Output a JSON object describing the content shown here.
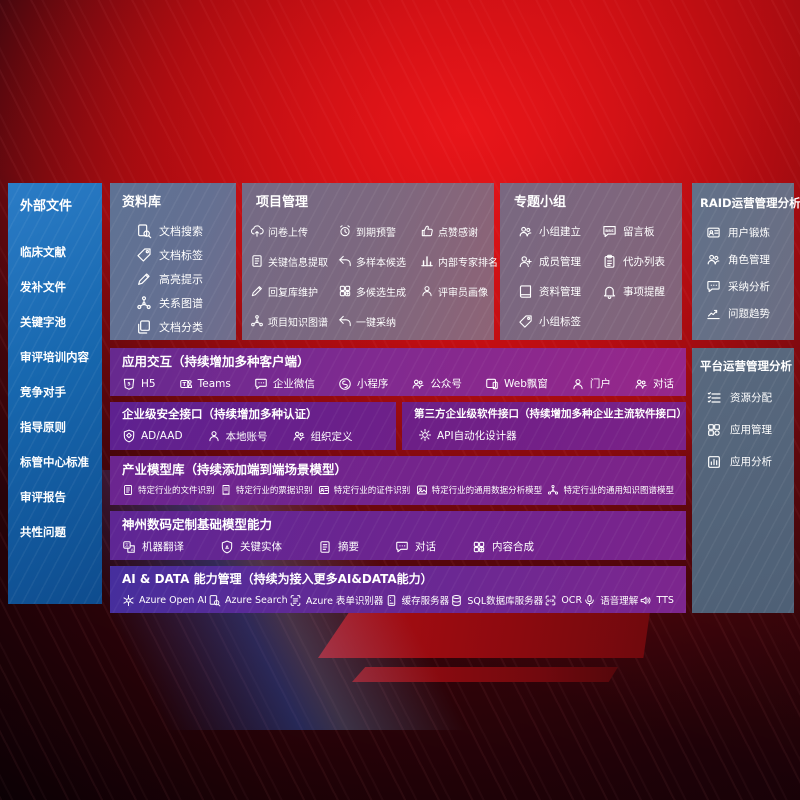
{
  "colors": {
    "background_red": "#bb0e13",
    "panel_blue": "#1767ae",
    "panel_slate": "#617189",
    "panel_mauve": "#7d687f",
    "band_purple": "#752a8f",
    "text": "#ffffff"
  },
  "left": {
    "title": "外部文件",
    "items": [
      "临床文献",
      "发补文件",
      "关键字池",
      "审评培训内容",
      "竞争对手",
      "指导原则",
      "标管中心标准",
      "审评报告",
      "共性问题"
    ]
  },
  "repo": {
    "title": "资料库",
    "items": [
      {
        "label": "文档搜索",
        "icon": "doc-search-icon"
      },
      {
        "label": "文档标签",
        "icon": "tag-icon"
      },
      {
        "label": "高亮提示",
        "icon": "highlight-pen-icon"
      },
      {
        "label": "关系图谱",
        "icon": "knowledge-graph-icon"
      },
      {
        "label": "文档分类",
        "icon": "doc-copy-icon"
      }
    ]
  },
  "project": {
    "title": "项目管理",
    "items": [
      {
        "label": "问卷上传",
        "icon": "cloud-upload-icon"
      },
      {
        "label": "到期预警",
        "icon": "alarm-icon"
      },
      {
        "label": "点赞感谢",
        "icon": "thumbs-up-icon"
      },
      {
        "label": "关键信息提取",
        "icon": "doc-extract-icon"
      },
      {
        "label": "多样本候选",
        "icon": "reply-arrow-icon"
      },
      {
        "label": "内部专家排名",
        "icon": "ranking-icon"
      },
      {
        "label": "回复库维护",
        "icon": "edit-pencil-icon"
      },
      {
        "label": "多候选生成",
        "icon": "generate-grid-icon"
      },
      {
        "label": "评审员画像",
        "icon": "person-icon"
      },
      {
        "label": "项目知识图谱",
        "icon": "knowledge-graph-icon"
      },
      {
        "label": "一键采纳",
        "icon": "adopt-arrow-icon"
      }
    ]
  },
  "groups": {
    "title": "专题小组",
    "items": [
      {
        "label": "小组建立",
        "icon": "people-icon"
      },
      {
        "label": "留言板",
        "icon": "bbs-board-icon"
      },
      {
        "label": "成员管理",
        "icon": "person-add-icon"
      },
      {
        "label": "代办列表",
        "icon": "clipboard-icon"
      },
      {
        "label": "资料管理",
        "icon": "book-icon"
      },
      {
        "label": "事项提醒",
        "icon": "bell-icon"
      },
      {
        "label": "小组标签",
        "icon": "tag-icon"
      }
    ]
  },
  "raid": {
    "title": "RAID运营管理分析",
    "items": [
      {
        "label": "用户锻炼",
        "icon": "id-card-icon"
      },
      {
        "label": "角色管理",
        "icon": "people-icon"
      },
      {
        "label": "采纳分析",
        "icon": "chat-qa-icon"
      },
      {
        "label": "问题趋势",
        "icon": "trend-chart-icon"
      }
    ]
  },
  "platform": {
    "title": "平台运营管理分析",
    "items": [
      {
        "label": "资源分配",
        "icon": "resource-list-icon"
      },
      {
        "label": "应用管理",
        "icon": "app-grid-icon"
      },
      {
        "label": "应用分析",
        "icon": "app-chart-icon"
      }
    ]
  },
  "interaction": {
    "title": "应用交互（持续增加多种客户端）",
    "items": [
      {
        "label": "H5",
        "icon": "h5-icon"
      },
      {
        "label": "Teams",
        "icon": "teams-icon"
      },
      {
        "label": "企业微信",
        "icon": "wechat-work-icon"
      },
      {
        "label": "小程序",
        "icon": "miniprogram-icon"
      },
      {
        "label": "公众号",
        "icon": "official-account-icon"
      },
      {
        "label": "Web飘窗",
        "icon": "web-window-icon"
      },
      {
        "label": "门户",
        "icon": "portal-icon"
      },
      {
        "label": "对话",
        "icon": "dialog-icon"
      }
    ]
  },
  "security": {
    "title": "企业级安全接口（持续增加多种认证）",
    "items": [
      {
        "label": "AD/AAD",
        "icon": "ad-shield-icon"
      },
      {
        "label": "本地账号",
        "icon": "local-account-icon"
      },
      {
        "label": "组织定义",
        "icon": "org-people-icon"
      }
    ]
  },
  "thirdparty": {
    "title": "第三方企业级软件接口（持续增加多种企业主流软件接口）",
    "items": [
      {
        "label": "API自动化设计器",
        "icon": "api-gear-icon"
      }
    ]
  },
  "models": {
    "title": "产业模型库（持续添加端到端场景模型）",
    "items": [
      {
        "label": "特定行业的文件识别",
        "icon": "doc-file-icon"
      },
      {
        "label": "特定行业的票据识别",
        "icon": "receipt-icon"
      },
      {
        "label": "特定行业的证件识别",
        "icon": "id-card-icon"
      },
      {
        "label": "特定行业的通用数据分析模型",
        "icon": "image-chart-icon"
      },
      {
        "label": "特定行业的通用知识图谱模型",
        "icon": "knowledge-graph-icon"
      }
    ]
  },
  "basemodel": {
    "title": "神州数码定制基础模型能力",
    "items": [
      {
        "label": "机器翻译",
        "icon": "translate-icon"
      },
      {
        "label": "关键实体",
        "icon": "entity-shield-icon"
      },
      {
        "label": "摘要",
        "icon": "summary-doc-icon"
      },
      {
        "label": "对话",
        "icon": "chat-icon"
      },
      {
        "label": "内容合成",
        "icon": "compose-grid-icon"
      }
    ]
  },
  "aidata": {
    "title": "AI & DATA 能力管理（持续为接入更多AI&DATA能力）",
    "items": [
      {
        "label": "Azure Open AI",
        "icon": "openai-icon"
      },
      {
        "label": "Azure Search",
        "icon": "azure-search-icon"
      },
      {
        "label": "Azure 表单识别器",
        "icon": "form-recognizer-icon"
      },
      {
        "label": "缓存服务器",
        "icon": "cache-server-icon"
      },
      {
        "label": "SQL数据库服务器",
        "icon": "sql-database-icon"
      },
      {
        "label": "OCR",
        "icon": "ocr-icon"
      },
      {
        "label": "语音理解",
        "icon": "speech-icon"
      },
      {
        "label": "TTS",
        "icon": "tts-icon"
      }
    ]
  }
}
